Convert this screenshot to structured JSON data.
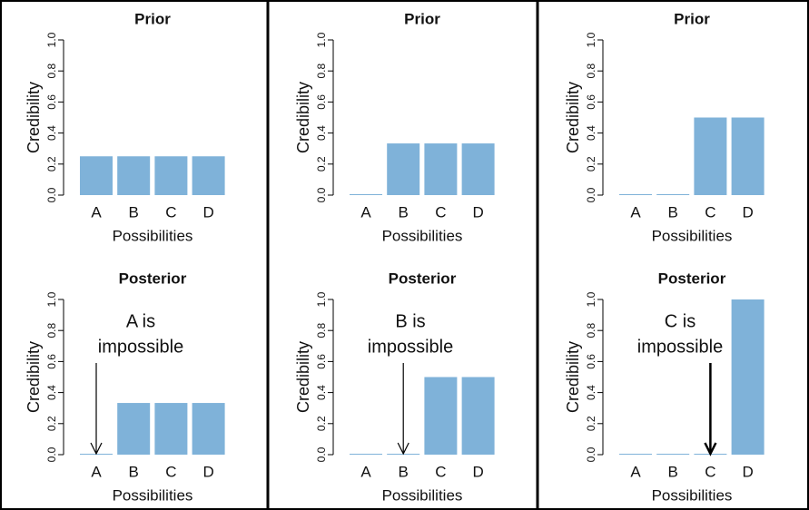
{
  "chart_data": [
    {
      "type": "bar",
      "title": "Prior",
      "ylabel": "Credibility",
      "xlabel": "Possibilities",
      "categories": [
        "A",
        "B",
        "C",
        "D"
      ],
      "values": [
        0.25,
        0.25,
        0.25,
        0.25
      ],
      "color": "#7fb2d9",
      "ylim": [
        0,
        1
      ],
      "yticks": [
        {
          "value": 0,
          "label": "0.0"
        },
        0.2,
        0.4,
        0.6,
        0.8,
        {
          "value": 1,
          "label": "1.0"
        }
      ]
    },
    {
      "type": "bar",
      "title": "Prior",
      "ylabel": "Credibility",
      "xlabel": "Possibilities",
      "categories": [
        "A",
        "B",
        "C",
        "D"
      ],
      "values": [
        0,
        0.333,
        0.333,
        0.333
      ],
      "color": "#7fb2d9",
      "ylim": [
        0,
        1
      ],
      "yticks": [
        {
          "value": 0,
          "label": "0.0"
        },
        0.2,
        0.4,
        0.6,
        0.8,
        {
          "value": 1,
          "label": "1.0"
        }
      ]
    },
    {
      "type": "bar",
      "title": "Prior",
      "ylabel": "Credibility",
      "xlabel": "Possibilities",
      "categories": [
        "A",
        "B",
        "C",
        "D"
      ],
      "values": [
        0,
        0,
        0.5,
        0.5
      ],
      "color": "#7fb2d9",
      "ylim": [
        0,
        1
      ],
      "yticks": [
        {
          "value": 0,
          "label": "0.0"
        },
        0.2,
        0.4,
        0.6,
        0.8,
        {
          "value": 1,
          "label": "1.0"
        }
      ]
    },
    {
      "type": "bar",
      "title": "Posterior",
      "ylabel": "Credibility",
      "xlabel": "Possibilities",
      "categories": [
        "A",
        "B",
        "C",
        "D"
      ],
      "values": [
        0,
        0.333,
        0.333,
        0.333
      ],
      "color": "#7fb2d9",
      "ylim": [
        0,
        1
      ],
      "yticks": [
        {
          "value": 0,
          "label": "0.0"
        },
        0.2,
        0.4,
        0.6,
        0.8,
        {
          "value": 1,
          "label": "1.0"
        }
      ],
      "annotation": [
        "A is",
        "impossible"
      ]
    },
    {
      "type": "bar",
      "title": "Posterior",
      "ylabel": "Credibility",
      "xlabel": "Possibilities",
      "categories": [
        "A",
        "B",
        "C",
        "D"
      ],
      "values": [
        0,
        0,
        0.5,
        0.5
      ],
      "color": "#7fb2d9",
      "ylim": [
        0,
        1
      ],
      "yticks": [
        {
          "value": 0,
          "label": "0.0"
        },
        0.2,
        0.4,
        0.6,
        0.8,
        {
          "value": 1,
          "label": "1.0"
        }
      ],
      "annotation": [
        "B is",
        "impossible"
      ]
    },
    {
      "type": "bar",
      "title": "Posterior",
      "ylabel": "Credibility",
      "xlabel": "Possibilities",
      "categories": [
        "A",
        "B",
        "C",
        "D"
      ],
      "values": [
        0,
        0,
        0,
        1
      ],
      "color": "#7fb2d9",
      "ylim": [
        0,
        1
      ],
      "yticks": [
        {
          "value": 0,
          "label": "0.0"
        },
        0.2,
        0.4,
        0.6,
        0.8,
        {
          "value": 1,
          "label": "1.0"
        }
      ],
      "annotation": [
        "C is",
        "impossible"
      ]
    }
  ]
}
